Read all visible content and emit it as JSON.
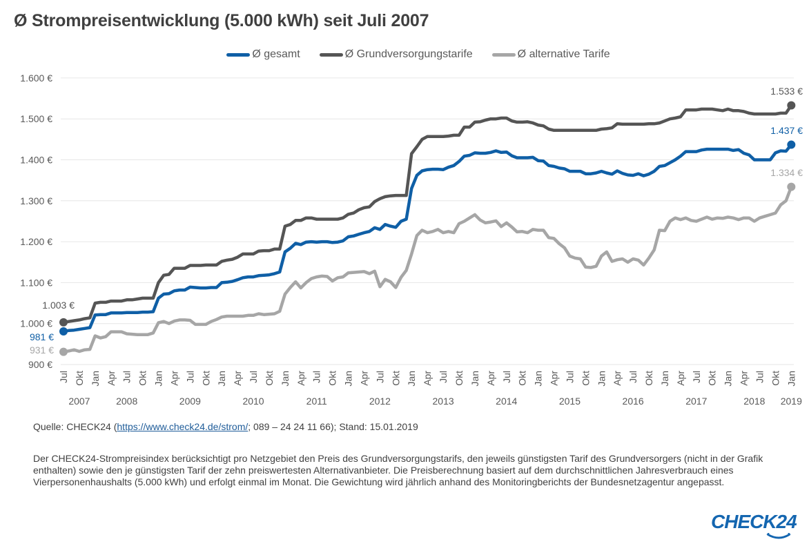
{
  "title": "Ø Strompreisentwicklung (5.000 kWh) seit Juli 2007",
  "source": {
    "prefix": "Quelle: CHECK24 (",
    "link": "https://www.check24.de/strom/",
    "suffix": "; 089 – 24 24 11 66); Stand: 15.01.2019"
  },
  "description": "Der CHECK24-Strompreisindex berücksichtigt pro Netzgebiet den Preis des Grundversorgungstarifs, den jeweils günstigsten Tarif des Grundversorgers (nicht in der Grafik enthalten) sowie den je günstigsten Tarif der zehn preiswertesten Alternativanbieter. Die Preisberechnung basiert auf dem durchschnittlichen Jahresverbrauch eines Vierpersonenhaushalts (5.000 kWh) und erfolgt einmal im Monat. Die Gewichtung wird jährlich anhand des Monitoringberichts der Bundesnetzagentur angepasst.",
  "logo": {
    "text": "CHECK24",
    "color": "#1466b0"
  },
  "chart_data": {
    "type": "line",
    "title": "Ø Strompreisentwicklung (5.000 kWh) seit Juli 2007",
    "xlabel": "",
    "ylabel": "",
    "ylim": [
      900,
      1600
    ],
    "yticks": [
      900,
      1000,
      1100,
      1200,
      1300,
      1400,
      1500,
      1600
    ],
    "ytick_labels": [
      "900 €",
      "1.000 €",
      "1.100 €",
      "1.200 €",
      "1.300 €",
      "1.400 €",
      "1.500 €",
      "1.600 €"
    ],
    "grid": true,
    "legend_position": "top-center",
    "x_start": "Jul 2007",
    "x_end": "Jan 2019",
    "month_tick_labels": [
      "Jul",
      "Okt",
      "Jan",
      "Apr",
      "Jul",
      "Okt",
      "Jan",
      "Apr",
      "Jul",
      "Okt",
      "Jan",
      "Apr",
      "Jul",
      "Okt",
      "Jan",
      "Apr",
      "Jul",
      "Okt",
      "Jan",
      "Apr",
      "Jul",
      "Okt",
      "Jan",
      "Apr",
      "Jul",
      "Okt",
      "Jan",
      "Apr",
      "Jul",
      "Okt",
      "Jan",
      "Apr",
      "Jul",
      "Okt",
      "Jan",
      "Apr",
      "Jul",
      "Okt",
      "Jan",
      "Apr",
      "Jul",
      "Okt",
      "Jan",
      "Apr",
      "Jul",
      "Okt",
      "Jan"
    ],
    "year_labels": [
      {
        "label": "2007",
        "month_index": 3
      },
      {
        "label": "2008",
        "month_index": 12
      },
      {
        "label": "2009",
        "month_index": 24
      },
      {
        "label": "2010",
        "month_index": 36
      },
      {
        "label": "2011",
        "month_index": 48
      },
      {
        "label": "2012",
        "month_index": 60
      },
      {
        "label": "2013",
        "month_index": 72
      },
      {
        "label": "2014",
        "month_index": 84
      },
      {
        "label": "2015",
        "month_index": 96
      },
      {
        "label": "2016",
        "month_index": 108
      },
      {
        "label": "2017",
        "month_index": 120
      },
      {
        "label": "2018",
        "month_index": 131
      },
      {
        "label": "2019",
        "month_index": 138
      }
    ],
    "series": [
      {
        "name": "Ø gesamt",
        "color": "#0f5fa6",
        "start_label": "981 €",
        "end_label": "1.437 €",
        "values": [
          981,
          983,
          984,
          986,
          988,
          990,
          1021,
          1022,
          1022,
          1026,
          1026,
          1026,
          1027,
          1027,
          1027,
          1028,
          1028,
          1029,
          1062,
          1072,
          1073,
          1080,
          1082,
          1082,
          1089,
          1088,
          1087,
          1087,
          1088,
          1088,
          1100,
          1101,
          1103,
          1107,
          1112,
          1114,
          1114,
          1117,
          1118,
          1119,
          1122,
          1126,
          1175,
          1184,
          1196,
          1193,
          1199,
          1200,
          1199,
          1200,
          1200,
          1198,
          1199,
          1202,
          1212,
          1214,
          1218,
          1222,
          1225,
          1234,
          1230,
          1242,
          1238,
          1235,
          1250,
          1255,
          1330,
          1362,
          1373,
          1376,
          1377,
          1377,
          1376,
          1382,
          1386,
          1396,
          1409,
          1411,
          1417,
          1416,
          1416,
          1418,
          1422,
          1418,
          1419,
          1410,
          1405,
          1405,
          1405,
          1406,
          1398,
          1397,
          1386,
          1384,
          1380,
          1378,
          1372,
          1372,
          1372,
          1366,
          1366,
          1368,
          1372,
          1368,
          1365,
          1373,
          1367,
          1363,
          1362,
          1366,
          1361,
          1365,
          1372,
          1384,
          1386,
          1393,
          1400,
          1409,
          1420,
          1420,
          1420,
          1424,
          1426,
          1426,
          1426,
          1426,
          1426,
          1423,
          1425,
          1416,
          1412,
          1400,
          1400,
          1400,
          1400,
          1417,
          1422,
          1421,
          1437
        ]
      },
      {
        "name": "Ø Grundversorgungstarife",
        "color": "#555555",
        "start_label": "1.003 €",
        "end_label": "1.533 €",
        "values": [
          1003,
          1005,
          1007,
          1009,
          1012,
          1014,
          1050,
          1052,
          1052,
          1055,
          1055,
          1055,
          1058,
          1058,
          1060,
          1062,
          1062,
          1062,
          1100,
          1118,
          1120,
          1135,
          1135,
          1135,
          1142,
          1142,
          1142,
          1143,
          1143,
          1143,
          1152,
          1155,
          1157,
          1162,
          1170,
          1170,
          1170,
          1177,
          1178,
          1178,
          1182,
          1182,
          1238,
          1242,
          1252,
          1252,
          1258,
          1258,
          1255,
          1255,
          1255,
          1255,
          1255,
          1258,
          1267,
          1270,
          1278,
          1283,
          1285,
          1298,
          1305,
          1310,
          1312,
          1313,
          1313,
          1313,
          1415,
          1432,
          1450,
          1457,
          1457,
          1457,
          1457,
          1458,
          1460,
          1460,
          1480,
          1480,
          1492,
          1493,
          1497,
          1500,
          1500,
          1502,
          1502,
          1495,
          1492,
          1492,
          1493,
          1490,
          1485,
          1483,
          1475,
          1472,
          1472,
          1472,
          1472,
          1472,
          1472,
          1472,
          1472,
          1472,
          1475,
          1476,
          1478,
          1488,
          1487,
          1487,
          1487,
          1487,
          1487,
          1488,
          1488,
          1490,
          1495,
          1500,
          1502,
          1505,
          1522,
          1522,
          1522,
          1524,
          1524,
          1524,
          1522,
          1520,
          1524,
          1520,
          1520,
          1518,
          1514,
          1512,
          1512,
          1512,
          1512,
          1512,
          1514,
          1514,
          1533
        ]
      },
      {
        "name": "Ø alternative Tarife",
        "color": "#a6a6a6",
        "start_label": "931 €",
        "end_label": "1.334 €",
        "values": [
          931,
          933,
          936,
          932,
          936,
          937,
          970,
          965,
          968,
          980,
          980,
          980,
          975,
          974,
          973,
          973,
          973,
          977,
          1002,
          1005,
          1000,
          1006,
          1009,
          1009,
          1008,
          998,
          998,
          998,
          1005,
          1010,
          1016,
          1018,
          1018,
          1018,
          1018,
          1020,
          1020,
          1024,
          1022,
          1023,
          1024,
          1030,
          1072,
          1088,
          1102,
          1087,
          1100,
          1110,
          1114,
          1116,
          1115,
          1104,
          1112,
          1114,
          1124,
          1125,
          1126,
          1127,
          1122,
          1128,
          1090,
          1108,
          1102,
          1088,
          1113,
          1130,
          1170,
          1215,
          1228,
          1222,
          1225,
          1230,
          1222,
          1225,
          1222,
          1244,
          1250,
          1258,
          1266,
          1253,
          1246,
          1248,
          1251,
          1237,
          1246,
          1236,
          1224,
          1225,
          1222,
          1230,
          1228,
          1228,
          1210,
          1208,
          1195,
          1185,
          1165,
          1160,
          1158,
          1138,
          1137,
          1140,
          1165,
          1175,
          1152,
          1156,
          1158,
          1150,
          1158,
          1155,
          1143,
          1160,
          1180,
          1228,
          1227,
          1250,
          1258,
          1254,
          1258,
          1252,
          1250,
          1255,
          1260,
          1255,
          1258,
          1257,
          1260,
          1258,
          1254,
          1258,
          1258,
          1250,
          1258,
          1262,
          1266,
          1270,
          1290,
          1300,
          1334
        ]
      }
    ]
  }
}
